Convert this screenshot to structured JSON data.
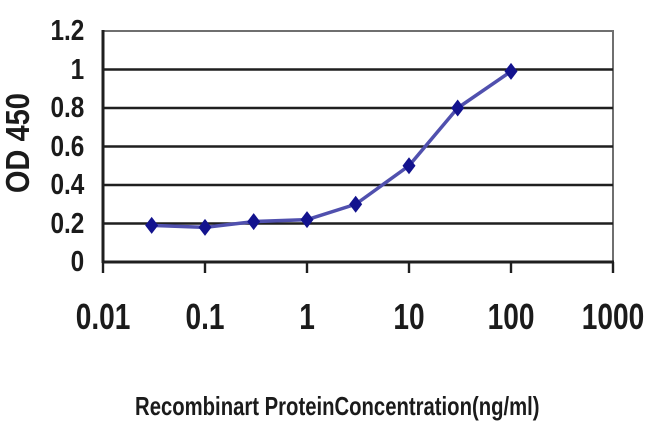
{
  "chart_data": {
    "type": "line",
    "title": "",
    "xlabel": "Recombinart ProteinConcentration(ng/ml)",
    "ylabel": "OD 450",
    "x_scale": "log",
    "xlim": [
      0.01,
      1000
    ],
    "ylim": [
      0,
      1.2
    ],
    "x_ticks": {
      "values": [
        0.01,
        0.1,
        1,
        10,
        100,
        1000
      ],
      "labels": [
        "0.01",
        "0.1",
        "1",
        "10",
        "100",
        "1000"
      ]
    },
    "y_ticks": {
      "values": [
        0,
        0.2,
        0.4,
        0.6,
        0.8,
        1,
        1.2
      ],
      "labels": [
        "0",
        "0.2",
        "0.4",
        "0.6",
        "0.8",
        "1",
        "1.2"
      ]
    },
    "grid": "horizontal-major",
    "legend": "none",
    "series": [
      {
        "name": "OD 450",
        "marker": "diamond",
        "marker_color": "#13138e",
        "line_color": "#5050ae",
        "points": [
          {
            "x": 0.03,
            "y": 0.19
          },
          {
            "x": 0.1,
            "y": 0.18
          },
          {
            "x": 0.3,
            "y": 0.21
          },
          {
            "x": 1,
            "y": 0.22
          },
          {
            "x": 3,
            "y": 0.3
          },
          {
            "x": 10,
            "y": 0.5
          },
          {
            "x": 30,
            "y": 0.8
          },
          {
            "x": 100,
            "y": 0.99
          }
        ]
      }
    ],
    "colors": {
      "axis": "#1f1f1f",
      "gridline": "#1f1f1f",
      "frame": "#6f6f6f",
      "text": "#1b1b1b",
      "background": "#ffffff"
    }
  }
}
